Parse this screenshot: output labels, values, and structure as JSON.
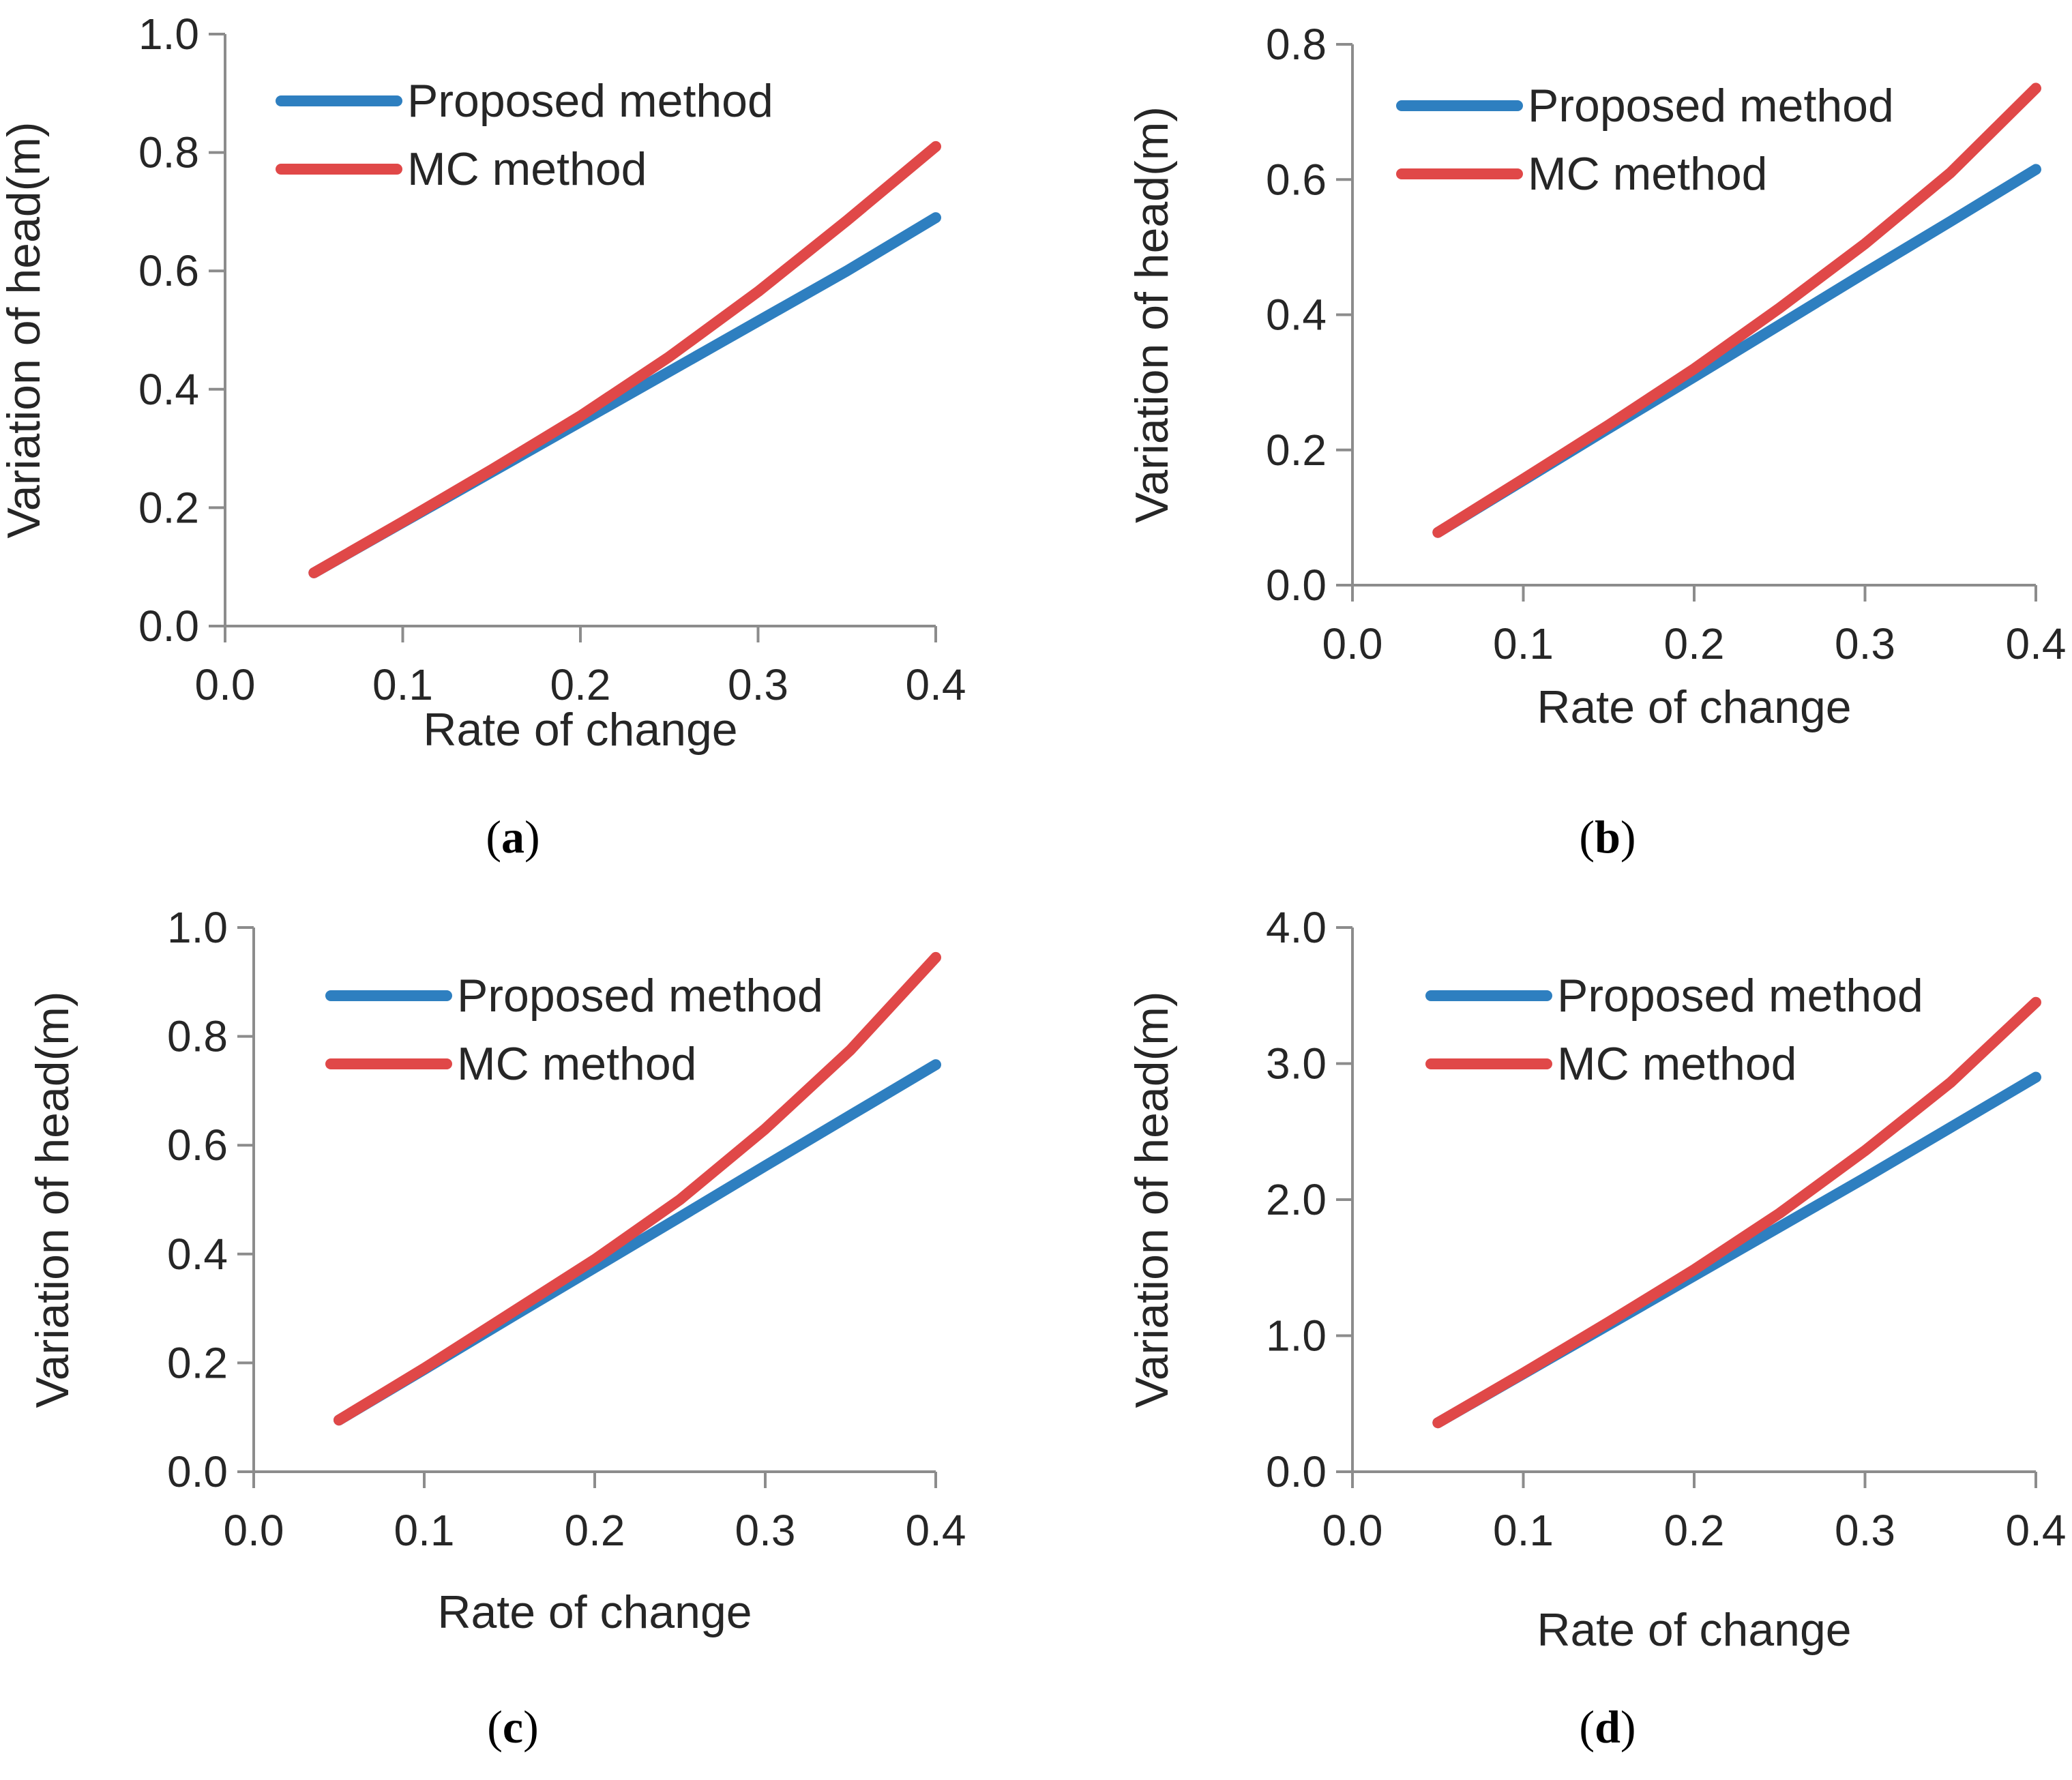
{
  "colors": {
    "proposed": "#2E7FC0",
    "mc": "#E04848",
    "axis": "#8C8C8C",
    "text": "#262626"
  },
  "chart_data": [
    {
      "panel": "a",
      "type": "line",
      "caption_letter": "a",
      "xlabel": "Rate of change",
      "ylabel": "Variation of head(m)",
      "xlim": [
        0,
        0.4
      ],
      "ylim": [
        0,
        1.0
      ],
      "x_ticks": [
        "0.0",
        "0.1",
        "0.2",
        "0.3",
        "0.4"
      ],
      "y_ticks": [
        "0.0",
        "0.2",
        "0.4",
        "0.6",
        "0.8",
        "1.0"
      ],
      "legend_position": "top-left",
      "x": [
        0.05,
        0.1,
        0.15,
        0.2,
        0.25,
        0.3,
        0.35,
        0.4
      ],
      "series": [
        {
          "name": "Proposed method",
          "color_key": "proposed",
          "values": [
            0.09,
            0.175,
            0.26,
            0.345,
            0.43,
            0.515,
            0.6,
            0.69
          ]
        },
        {
          "name": "MC method",
          "color_key": "mc",
          "values": [
            0.09,
            0.176,
            0.264,
            0.355,
            0.455,
            0.565,
            0.685,
            0.81
          ]
        }
      ]
    },
    {
      "panel": "b",
      "type": "line",
      "caption_letter": "b",
      "xlabel": "Rate of change",
      "ylabel": "Variation of head(m)",
      "xlim": [
        0,
        0.4
      ],
      "ylim": [
        0,
        0.8
      ],
      "x_ticks": [
        "0.0",
        "0.1",
        "0.2",
        "0.3",
        "0.4"
      ],
      "y_ticks": [
        "0.0",
        "0.2",
        "0.4",
        "0.6",
        "0.8"
      ],
      "legend_position": "top-left",
      "x": [
        0.05,
        0.1,
        0.15,
        0.2,
        0.25,
        0.3,
        0.35,
        0.4
      ],
      "series": [
        {
          "name": "Proposed method",
          "color_key": "proposed",
          "values": [
            0.078,
            0.155,
            0.232,
            0.308,
            0.385,
            0.462,
            0.538,
            0.615
          ]
        },
        {
          "name": "MC method",
          "color_key": "mc",
          "values": [
            0.078,
            0.157,
            0.237,
            0.32,
            0.41,
            0.505,
            0.61,
            0.735
          ]
        }
      ]
    },
    {
      "panel": "c",
      "type": "line",
      "caption_letter": "c",
      "xlabel": "Rate of change",
      "ylabel": "Variation of head(m)",
      "xlim": [
        0,
        0.4
      ],
      "ylim": [
        0,
        1.0
      ],
      "x_ticks": [
        "0.0",
        "0.1",
        "0.2",
        "0.3",
        "0.4"
      ],
      "y_ticks": [
        "0.0",
        "0.2",
        "0.4",
        "0.6",
        "0.8",
        "1.0"
      ],
      "legend_position": "top-left",
      "x": [
        0.05,
        0.1,
        0.15,
        0.2,
        0.25,
        0.3,
        0.35,
        0.4
      ],
      "series": [
        {
          "name": "Proposed method",
          "color_key": "proposed",
          "values": [
            0.095,
            0.188,
            0.282,
            0.375,
            0.468,
            0.562,
            0.655,
            0.748
          ]
        },
        {
          "name": "MC method",
          "color_key": "mc",
          "values": [
            0.095,
            0.19,
            0.29,
            0.39,
            0.5,
            0.63,
            0.775,
            0.945
          ]
        }
      ]
    },
    {
      "panel": "d",
      "type": "line",
      "caption_letter": "d",
      "xlabel": "Rate of change",
      "ylabel": "Variation of head(m)",
      "xlim": [
        0,
        0.4
      ],
      "ylim": [
        0,
        4.0
      ],
      "x_ticks": [
        "0.0",
        "0.1",
        "0.2",
        "0.3",
        "0.4"
      ],
      "y_ticks": [
        "0.0",
        "1.0",
        "2.0",
        "3.0",
        "4.0"
      ],
      "legend_position": "top-left",
      "x": [
        0.05,
        0.1,
        0.15,
        0.2,
        0.25,
        0.3,
        0.35,
        0.4
      ],
      "series": [
        {
          "name": "Proposed method",
          "color_key": "proposed",
          "values": [
            0.36,
            0.72,
            1.08,
            1.44,
            1.8,
            2.16,
            2.53,
            2.9
          ]
        },
        {
          "name": "MC method",
          "color_key": "mc",
          "values": [
            0.36,
            0.725,
            1.1,
            1.485,
            1.9,
            2.36,
            2.86,
            3.45
          ]
        }
      ]
    }
  ]
}
